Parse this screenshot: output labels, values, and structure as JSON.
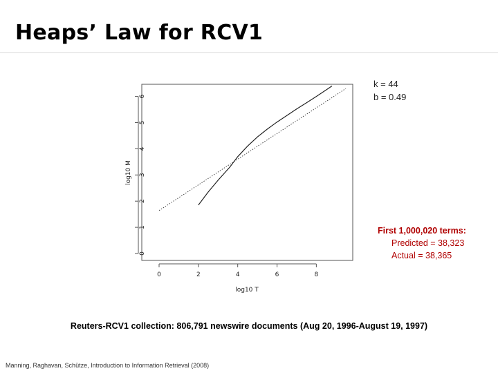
{
  "slide": {
    "title": "Heaps’ Law for RCV1",
    "params": {
      "k": "k = 44",
      "b": "b = 0.49"
    },
    "callout": {
      "heading": "First 1,000,020 terms:",
      "predicted": "Predicted = 38,323",
      "actual": "Actual = 38,365"
    },
    "caption": "Reuters-RCV1 collection: 806,791 newswire documents (Aug 20, 1996-August 19, 1997)",
    "footer": "Manning, Raghavan, Schütze, Introduction to Information Retrieval (2008)"
  },
  "chart_data": {
    "type": "line",
    "title": "",
    "xlabel": "log10 T",
    "ylabel": "log10 M",
    "xlim": [
      0,
      9.5
    ],
    "ylim": [
      0,
      6.2
    ],
    "x_ticks": [
      0,
      2,
      4,
      6,
      8
    ],
    "y_ticks": [
      0,
      1,
      2,
      3,
      4,
      5,
      6
    ],
    "grid": false,
    "series": [
      {
        "style": "solid",
        "x": [
          2.0,
          2.5,
          3.0,
          3.3,
          3.6,
          4.0,
          4.5,
          5.0,
          5.5,
          6.0,
          6.5,
          7.0,
          7.5,
          8.0,
          8.5,
          8.8
        ],
        "y": [
          1.85,
          2.35,
          2.8,
          3.05,
          3.3,
          3.7,
          4.1,
          4.45,
          4.75,
          5.02,
          5.27,
          5.52,
          5.76,
          6.0,
          6.25,
          6.4
        ]
      },
      {
        "style": "dotted",
        "x": [
          0,
          9.5
        ],
        "y": [
          1.64,
          6.3
        ]
      }
    ]
  }
}
